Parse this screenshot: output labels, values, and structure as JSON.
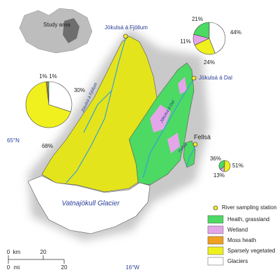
{
  "inset": {
    "label": "Study area"
  },
  "rivers": {
    "fjollum": "Jökulsá á Fjöllum",
    "dal": "Jökulsá á Dal",
    "fellsa": "Fellsá"
  },
  "map_river_labels": [
    "Jökulsá á Fjöllum",
    "Jökulsá á Dal",
    "Fellsá"
  ],
  "glacier_label": "Vatnajökull Glacier",
  "graticule": {
    "latitude": "65°N",
    "longitude": "16°W"
  },
  "legend": {
    "station": {
      "label": "River sampling station",
      "color": "#f5e628"
    },
    "classes": [
      {
        "label": "Heath, grassland",
        "color": "#4cd964"
      },
      {
        "label": "Wetland",
        "color": "#e4a6e8"
      },
      {
        "label": "Moss heath",
        "color": "#f0a020"
      },
      {
        "label": "Sparsely vegetated",
        "color": "#f0f01e"
      },
      {
        "label": "Glaciers",
        "color": "#ffffff"
      }
    ]
  },
  "pies": [
    {
      "values": [
        1,
        null,
        1,
        68,
        30
      ],
      "value_labels": [
        "1%",
        null,
        "1%",
        "68%",
        "30%"
      ]
    },
    {
      "values": [
        21,
        11,
        null,
        24,
        44
      ],
      "value_labels": [
        "21%",
        "11%",
        null,
        "24%",
        "44%"
      ]
    },
    {
      "values": [
        36,
        13,
        null,
        51,
        null
      ],
      "value_labels": [
        "36%",
        "13%",
        null,
        "51%",
        null
      ]
    }
  ],
  "scale": {
    "km": {
      "start": "0",
      "unit": "km",
      "end": "20"
    },
    "mi": {
      "start": "0",
      "unit": "mi",
      "end": "20"
    }
  }
}
